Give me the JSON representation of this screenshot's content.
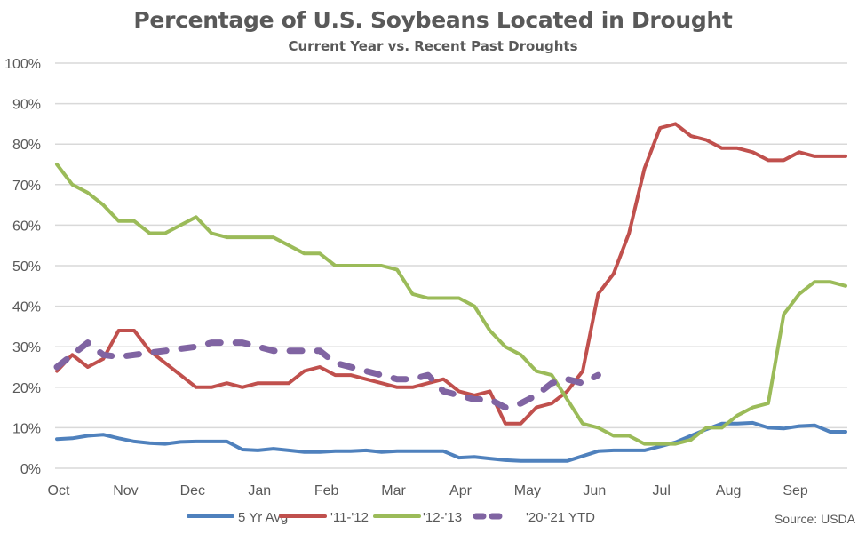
{
  "chart_data": {
    "type": "line",
    "title": "Percentage of U.S. Soybeans Located in Drought",
    "subtitle": "Current Year vs. Recent Past Droughts",
    "xlabel": "",
    "ylabel": "",
    "ylim": [
      0,
      100
    ],
    "yticks": [
      "0%",
      "10%",
      "20%",
      "30%",
      "40%",
      "50%",
      "60%",
      "70%",
      "80%",
      "90%",
      "100%"
    ],
    "xtick_labels": [
      "Oct",
      "Nov",
      "Dec",
      "Jan",
      "Feb",
      "Mar",
      "Apr",
      "May",
      "Jun",
      "Jul",
      "Aug",
      "Sep"
    ],
    "n_weeks": 52,
    "grid": true,
    "legend_position": "bottom",
    "source": "Source: USDA",
    "series": [
      {
        "name": "5 Yr Avg",
        "color": "#4f81bd",
        "dashed": false,
        "values": [
          7.2,
          7.4,
          8.0,
          8.3,
          7.4,
          6.6,
          6.2,
          6.0,
          6.5,
          6.6,
          6.6,
          6.6,
          4.6,
          4.4,
          4.8,
          4.4,
          4.0,
          4.0,
          4.2,
          4.2,
          4.4,
          4.0,
          4.2,
          4.2,
          4.2,
          4.2,
          2.6,
          2.8,
          2.4,
          2.0,
          1.8,
          1.8,
          1.8,
          1.8,
          3.0,
          4.2,
          4.4,
          4.4,
          4.4,
          5.4,
          6.4,
          8.0,
          9.6,
          11.0,
          11.0,
          11.2,
          10.0,
          9.8,
          10.4,
          10.6,
          9.0,
          9.0
        ]
      },
      {
        "name": "'11-'12",
        "color": "#c0504d",
        "dashed": false,
        "values": [
          24,
          28,
          25,
          27,
          34,
          34,
          29,
          26,
          23,
          20,
          20,
          21,
          20,
          21,
          21,
          21,
          24,
          25,
          23,
          23,
          22,
          21,
          20,
          20,
          21,
          22,
          19,
          18,
          19,
          11,
          11,
          15,
          16,
          19,
          24,
          43,
          48,
          58,
          74,
          84,
          85,
          82,
          81,
          79,
          79,
          78,
          76,
          76,
          78,
          77,
          77,
          77
        ]
      },
      {
        "name": "'12-'13",
        "color": "#9bbb59",
        "dashed": false,
        "values": [
          75,
          70,
          68,
          65,
          61,
          61,
          58,
          58,
          60,
          62,
          58,
          57,
          57,
          57,
          57,
          55,
          53,
          53,
          50,
          50,
          50,
          50,
          49,
          43,
          42,
          42,
          42,
          40,
          34,
          30,
          28,
          24,
          23,
          17,
          11,
          10,
          8,
          8,
          6,
          6,
          6,
          7,
          10,
          10,
          13,
          15,
          16,
          38,
          43,
          46,
          46,
          45
        ]
      },
      {
        "name": "'20-'21 YTD",
        "color": "#8064a2",
        "dashed": true,
        "values": [
          25,
          28,
          31,
          28,
          27.5,
          28,
          28.5,
          29,
          29.5,
          30,
          31,
          31,
          31,
          30,
          29,
          29,
          29,
          29,
          26,
          25,
          24,
          23,
          22,
          22,
          23,
          19,
          18,
          17,
          17,
          15,
          16,
          18,
          21,
          22,
          21,
          23
        ]
      }
    ]
  }
}
